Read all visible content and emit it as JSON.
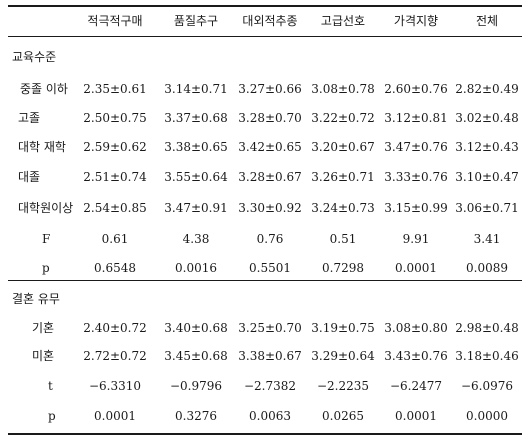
{
  "headers": [
    "적극적구매",
    "품질추구",
    "대외적추종",
    "고급선호",
    "가격지향",
    "전체"
  ],
  "sections": [
    {
      "title": "교육수준",
      "rows": [
        {
          "label": "중졸 이하",
          "values": [
            "2.35±0.61",
            "3.14±0.71",
            "3.27±0.66",
            "3.08±0.78",
            "2.60±0.76",
            "2.82±0.49"
          ]
        },
        {
          "label": "고졸",
          "values": [
            "2.50±0.75",
            "3.37±0.68",
            "3.28±0.70",
            "3.22±0.72",
            "3.12±0.81",
            "3.02±0.48"
          ]
        },
        {
          "label": "대학 재학",
          "values": [
            "2.59±0.62",
            "3.38±0.65",
            "3.42±0.65",
            "3.20±0.67",
            "3.47±0.76",
            "3.12±0.43"
          ]
        },
        {
          "label": "대졸",
          "values": [
            "2.51±0.74",
            "3.55±0.64",
            "3.28±0.67",
            "3.26±0.71",
            "3.33±0.76",
            "3.10±0.47"
          ]
        },
        {
          "label": "대학원이상",
          "values": [
            "2.54±0.85",
            "3.47±0.91",
            "3.30±0.92",
            "3.24±0.73",
            "3.15±0.99",
            "3.06±0.71"
          ]
        },
        {
          "label": "F",
          "values": [
            "0.61",
            "4.38",
            "0.76",
            "0.51",
            "9.91",
            "3.41"
          ]
        },
        {
          "label": "p",
          "values": [
            "0.6548",
            "0.0016",
            "0.5501",
            "0.7298",
            "0.0001",
            "0.0089"
          ]
        }
      ]
    },
    {
      "title": "결혼 유무",
      "rows": [
        {
          "label": "기혼",
          "values": [
            "2.40±0.72",
            "3.40±0.68",
            "3.25±0.70",
            "3.19±0.75",
            "3.08±0.80",
            "2.98±0.48"
          ]
        },
        {
          "label": "미혼",
          "values": [
            "2.72±0.72",
            "3.45±0.68",
            "3.38±0.67",
            "3.29±0.64",
            "3.43±0.76",
            "3.18±0.46"
          ]
        },
        {
          "label": "t",
          "values": [
            "−6.3310",
            "−0.9796",
            "−2.7382",
            "−2.2235",
            "−6.2477",
            "−6.0976"
          ]
        },
        {
          "label": "p",
          "values": [
            "0.0001",
            "0.3276",
            "0.0063",
            "0.0265",
            "0.0001",
            "0.0000"
          ]
        }
      ]
    }
  ]
}
